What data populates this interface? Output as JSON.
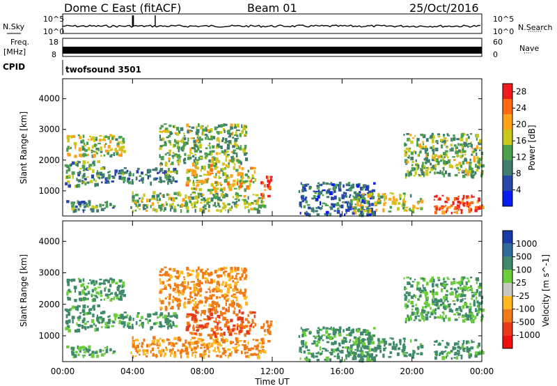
{
  "chart_data": {
    "type": "heatmap",
    "header": {
      "station": "Dome C East (fitACF)",
      "beam": "Beam 01",
      "date": "25/Oct/2016"
    },
    "params": {
      "nsky_label": "N.Sky",
      "nsearch_label": "N.Search",
      "freq_label": "Freq.",
      "freq_unit": "[MHz]",
      "nave_label": "Nave",
      "cpid_label": "CPID",
      "cpid_value": "twofsound 3501",
      "noise_ticks_left": [
        "10^5",
        "10^0"
      ],
      "noise_ticks_right": [
        "10^5",
        "10^0"
      ],
      "freq_ticks": [
        "18",
        "8"
      ],
      "nave_ticks": [
        "60",
        "0"
      ],
      "freq_mhz": 10.5,
      "nave": 38
    },
    "xlabel": "Time UT",
    "xlim": [
      0,
      24
    ],
    "x_ticks": [
      "00:00",
      "04:00",
      "08:00",
      "12:00",
      "16:00",
      "20:00",
      "00:00"
    ],
    "x_tick_values": [
      0,
      4,
      8,
      12,
      16,
      20,
      24
    ],
    "ylabel": "Slant Range [km]",
    "ylim": [
      180,
      4650
    ],
    "y_ticks": [
      1000,
      2000,
      3000,
      4000
    ],
    "panels": [
      {
        "name": "power",
        "colorbar_label": "Power [dB]",
        "colorbar_ticks": [
          4,
          8,
          12,
          16,
          20,
          24,
          28
        ],
        "range": [
          0,
          30
        ],
        "colors": [
          "#0a1cf0",
          "#2946a8",
          "#3f7e6e",
          "#4aa04e",
          "#c9c81c",
          "#ffa31a",
          "#ff6a10",
          "#ee1c1c"
        ]
      },
      {
        "name": "velocity",
        "colorbar_label": "Velocity [m s^-1]",
        "colorbar_ticks": [
          "1000",
          "500",
          "100",
          "25",
          "-25",
          "-100",
          "-500",
          "-1000"
        ],
        "colors": [
          "#1a3aa6",
          "#2f6c9c",
          "#3f8a6a",
          "#6ccd3a",
          "#c8c8c0",
          "#ffb820",
          "#f07a18",
          "#e83a18",
          "#ee1010"
        ]
      }
    ],
    "echo_regions": [
      {
        "t0": 0.2,
        "t1": 3.5,
        "r0": 2150,
        "r1": 2850,
        "power": 16,
        "velocity": 150
      },
      {
        "t0": 0.1,
        "t1": 2.0,
        "r0": 1200,
        "r1": 2000,
        "power": 12,
        "velocity": 200
      },
      {
        "t0": 0.1,
        "t1": 3.0,
        "r0": 380,
        "r1": 700,
        "power": 12,
        "velocity": 120
      },
      {
        "t0": 2.0,
        "t1": 6.5,
        "r0": 1300,
        "r1": 1800,
        "power": 10,
        "velocity": 150
      },
      {
        "t0": 3.8,
        "t1": 11.5,
        "r0": 380,
        "r1": 1000,
        "power": 14,
        "velocity": -120
      },
      {
        "t0": 5.5,
        "t1": 10.5,
        "r0": 1900,
        "r1": 3200,
        "power": 14,
        "velocity": -160
      },
      {
        "t0": 7.0,
        "t1": 11.0,
        "r0": 1050,
        "r1": 1900,
        "power": 18,
        "velocity": -450
      },
      {
        "t0": 11.3,
        "t1": 11.9,
        "r0": 850,
        "r1": 1500,
        "power": 26,
        "velocity": -200
      },
      {
        "t0": 13.5,
        "t1": 17.8,
        "r0": 250,
        "r1": 1300,
        "power": 8,
        "velocity": 150
      },
      {
        "t0": 16.5,
        "t1": 20.5,
        "r0": 350,
        "r1": 950,
        "power": 16,
        "velocity": 180
      },
      {
        "t0": 19.5,
        "t1": 24.0,
        "r0": 1500,
        "r1": 2900,
        "power": 14,
        "velocity": 120
      },
      {
        "t0": 21.2,
        "t1": 24.0,
        "r0": 300,
        "r1": 880,
        "power": 26,
        "velocity": 160
      }
    ]
  }
}
